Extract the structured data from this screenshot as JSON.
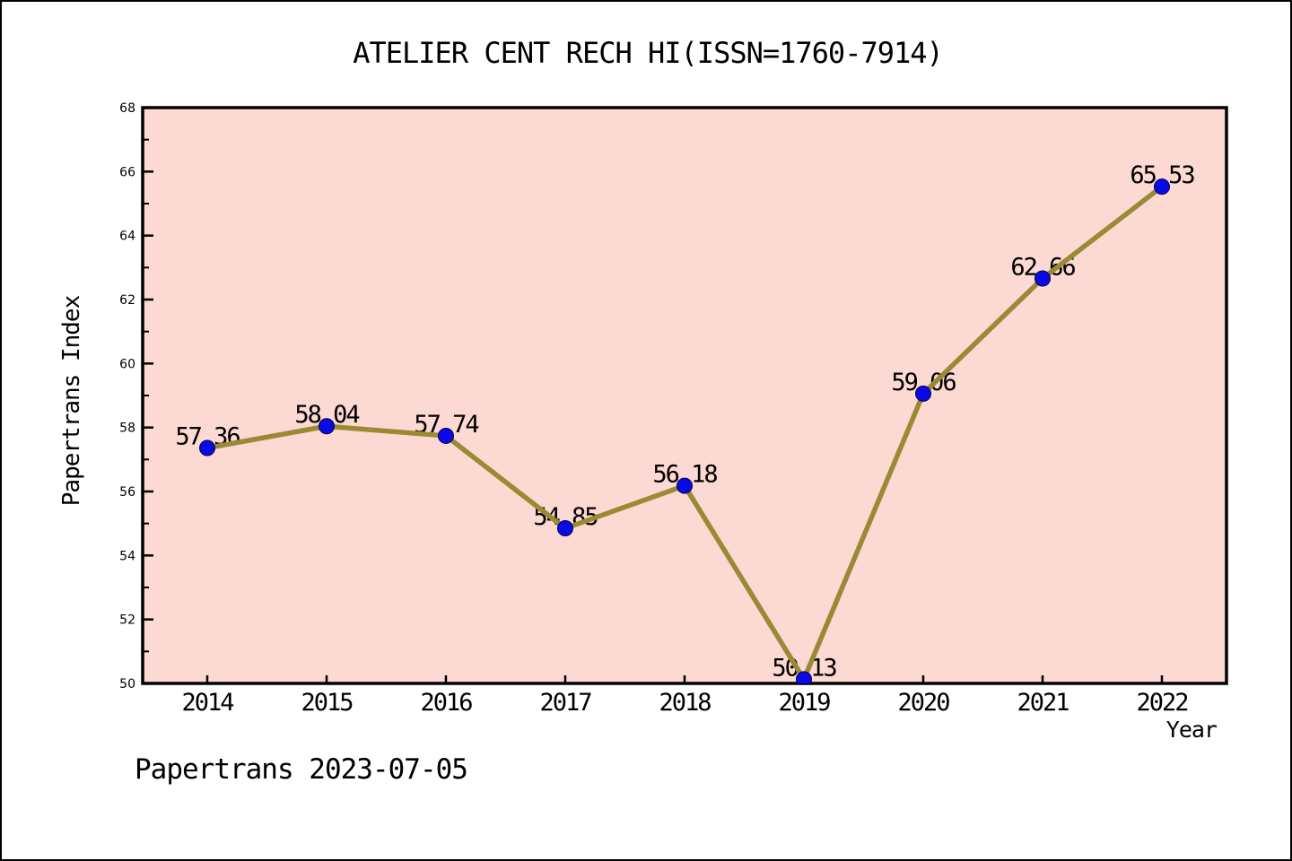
{
  "chart_data": {
    "type": "line",
    "title": "ATELIER CENT RECH HI(ISSN=1760-7914)",
    "x": [
      2014,
      2015,
      2016,
      2017,
      2018,
      2019,
      2020,
      2021,
      2022
    ],
    "series": [
      {
        "name": "Papertrans Index",
        "values": [
          57.36,
          58.04,
          57.74,
          54.85,
          56.18,
          50.13,
          59.06,
          62.66,
          65.53
        ]
      }
    ],
    "point_labels": [
      "57.36",
      "58.04",
      "57.74",
      "54.85",
      "56.18",
      "50.13",
      "59.06",
      "62.66",
      "65.53"
    ],
    "xlabel": "Year",
    "ylabel": "Papertrans Index",
    "ylim": [
      50,
      68
    ],
    "y_major_step": 2,
    "y_minor_step": 1,
    "grid": false,
    "legend": "none",
    "colors": {
      "line": "#9A8A34",
      "marker_fill": "#0A0AE6",
      "marker_edge": "#00004D",
      "plot_bg": "#FCD9D3",
      "axis": "#000000",
      "text": "#000000",
      "page_bg": "#FFFFFF"
    }
  },
  "footer": {
    "text": "Papertrans 2023-07-05"
  }
}
